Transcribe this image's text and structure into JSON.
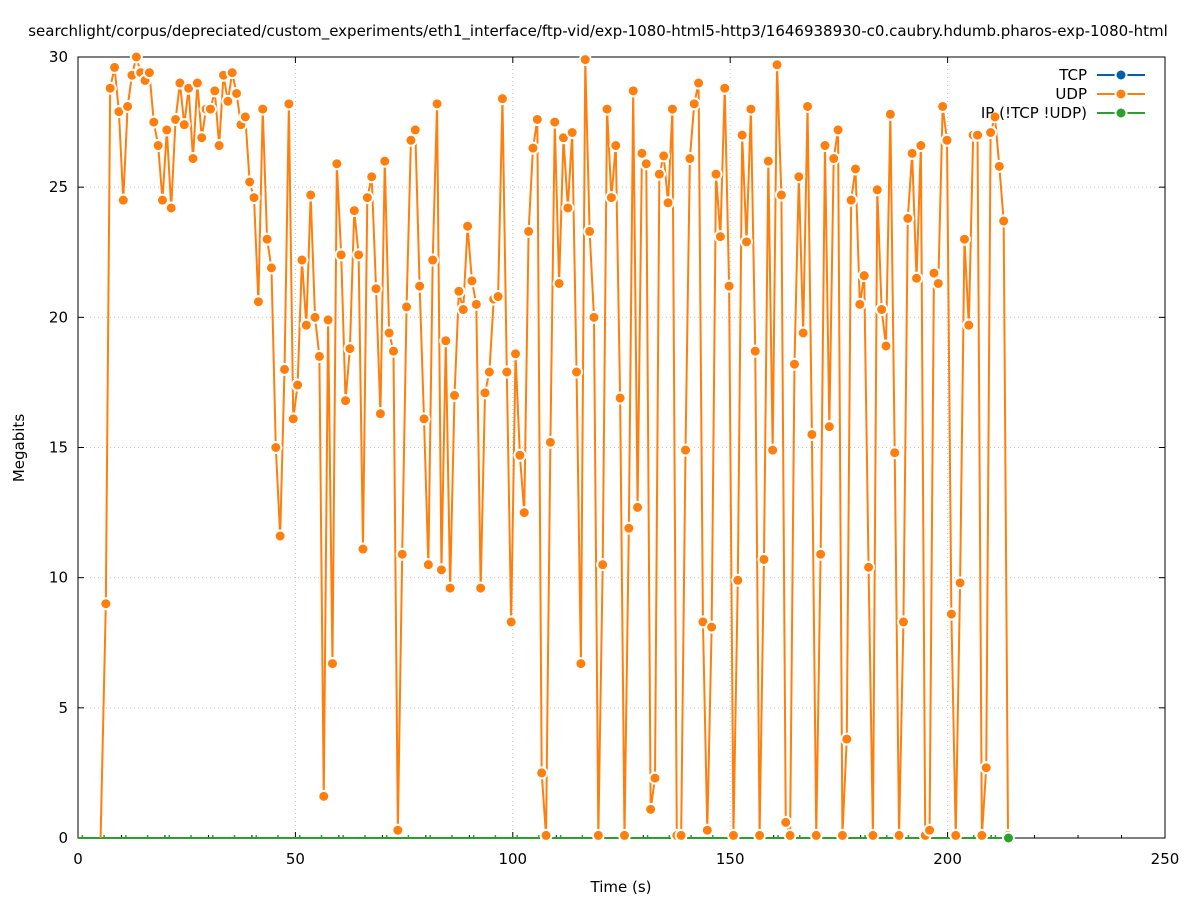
{
  "chart_data": {
    "type": "line",
    "title": "searchlight/corpus/depreciated/custom_experiments/eth1_interface/ftp-vid/exp-1080-html5-http3/1646938930-c0.caubry.hdumb.pharos-exp-1080-html",
    "xlabel": "Time (s)",
    "ylabel": "Megabits",
    "xlim": [
      0,
      250
    ],
    "ylim": [
      0,
      30
    ],
    "xticks": [
      "0",
      "50",
      "100",
      "150",
      "200",
      "250"
    ],
    "yticks": [
      "0",
      "5",
      "10",
      "15",
      "20",
      "25",
      "30"
    ],
    "grid": true,
    "legend_position": "top-right",
    "series": [
      {
        "name": "TCP",
        "color": "#0060ad",
        "x_start": null,
        "x_end": null,
        "values": []
      },
      {
        "name": "UDP",
        "color": "#ff7f0e",
        "x_start": 6.4,
        "x_end": 213.9,
        "values": [
          9.0,
          28.8,
          29.6,
          27.9,
          24.5,
          28.1,
          29.3,
          30.0,
          29.4,
          29.1,
          29.4,
          27.5,
          26.6,
          24.5,
          27.2,
          24.2,
          27.6,
          29.0,
          27.4,
          28.8,
          26.1,
          29.0,
          26.9,
          28.0,
          28.0,
          28.7,
          26.6,
          29.3,
          28.3,
          29.4,
          28.6,
          27.4,
          27.7,
          25.2,
          24.6,
          20.6,
          28.0,
          23.0,
          21.9,
          15.0,
          11.6,
          18.0,
          28.2,
          16.1,
          17.4,
          22.2,
          19.7,
          24.7,
          20.0,
          18.5,
          1.6,
          19.9,
          6.7,
          25.9,
          22.4,
          16.8,
          18.8,
          24.1,
          22.4,
          11.1,
          24.6,
          25.4,
          21.1,
          16.3,
          26.0,
          19.4,
          18.7,
          0.3,
          10.9,
          20.4,
          26.8,
          27.2,
          21.2,
          16.1,
          10.5,
          22.2,
          28.2,
          10.3,
          19.1,
          9.6,
          17.0,
          21.0,
          20.3,
          23.5,
          21.4,
          20.5,
          9.6,
          17.1,
          17.9,
          20.7,
          20.8,
          28.4,
          17.9,
          8.3,
          18.6,
          14.7,
          12.5,
          23.3,
          26.5,
          27.6,
          2.5,
          0.1,
          15.2,
          27.5,
          21.3,
          26.9,
          24.2,
          27.1,
          17.9,
          6.7,
          29.9,
          23.3,
          20.0,
          0.1,
          10.5,
          28.0,
          24.6,
          26.6,
          16.9,
          0.1,
          11.9,
          28.7,
          12.7,
          26.3,
          25.9,
          1.1,
          2.3,
          25.5,
          26.2,
          24.4,
          28.0,
          0.1,
          0.1,
          14.9,
          26.1,
          28.2,
          29.0,
          8.3,
          0.3,
          8.1,
          25.5,
          23.1,
          28.8,
          21.2,
          0.1,
          9.9,
          27.0,
          22.9,
          28.0,
          18.7,
          0.1,
          10.7,
          26.0,
          14.9,
          29.7,
          24.7,
          0.6,
          0.1,
          18.2,
          25.4,
          19.4,
          28.1,
          15.5,
          0.1,
          10.9,
          26.6,
          15.8,
          26.1,
          27.2,
          0.1,
          3.8,
          24.5,
          25.7,
          20.5,
          21.6,
          10.4,
          0.1,
          24.9,
          20.3,
          18.9,
          27.8,
          14.8,
          0.1,
          8.3,
          23.8,
          26.3,
          21.5,
          26.6,
          0.1,
          0.3,
          21.7,
          21.3,
          28.1,
          26.8,
          8.6,
          0.1,
          9.8,
          23.0,
          19.7,
          27.0,
          27.0,
          0.1,
          2.7,
          27.1,
          27.7,
          25.8,
          23.7,
          0.1
        ]
      },
      {
        "name": "IP (!TCP  !UDP)",
        "color": "#2ca02c",
        "x_start": 0,
        "x_end": 214,
        "values": [
          0,
          0
        ]
      }
    ]
  }
}
